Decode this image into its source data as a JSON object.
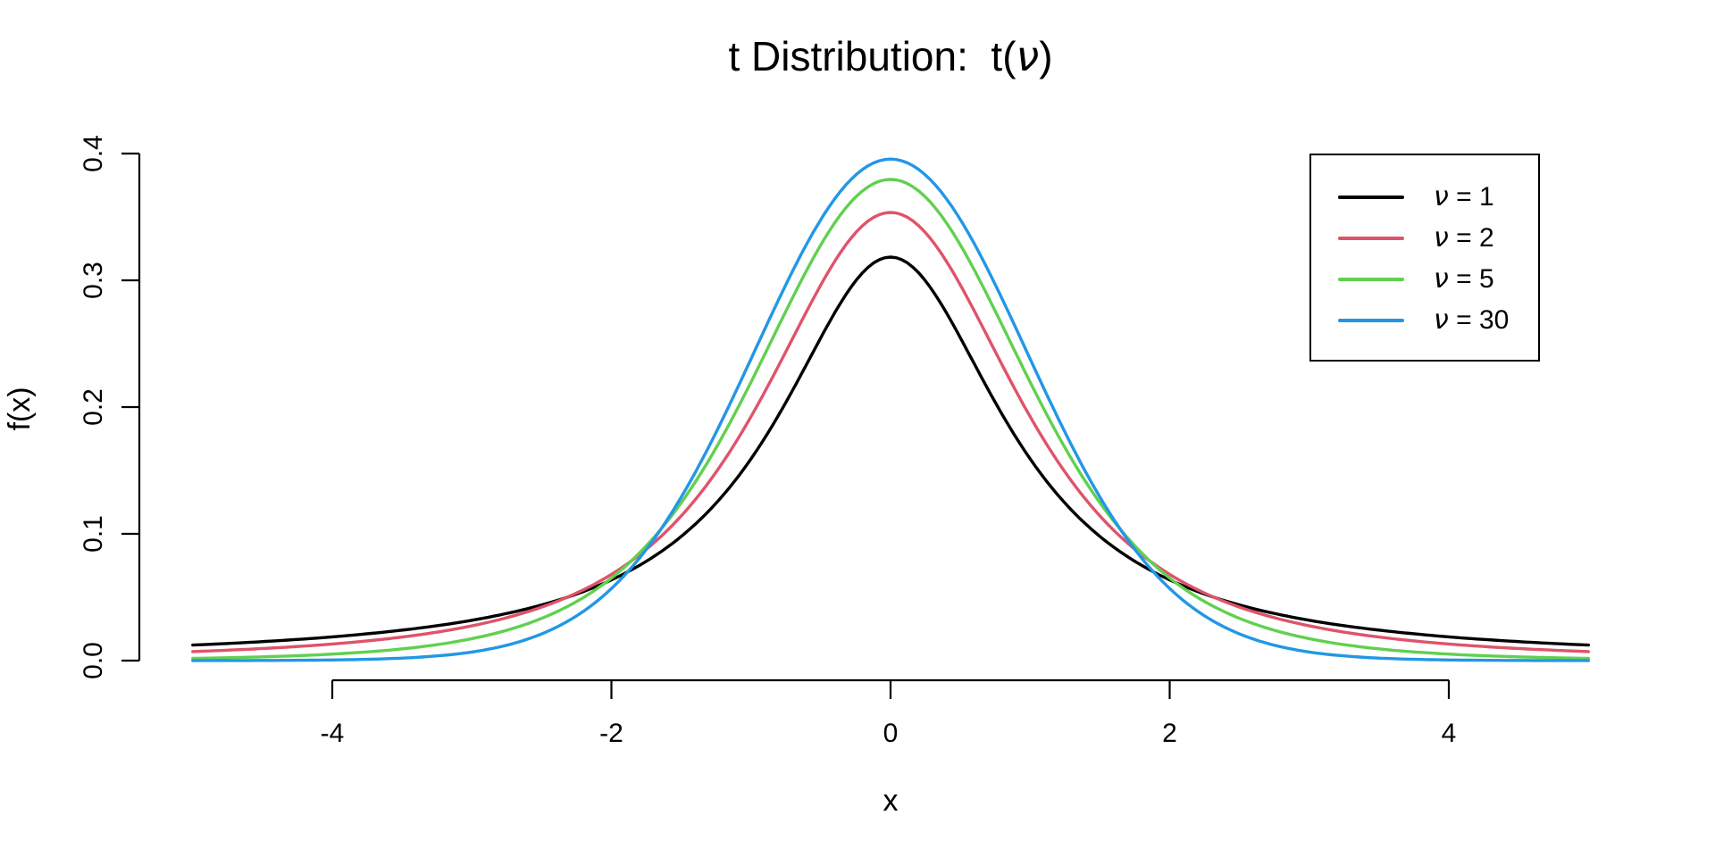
{
  "title": {
    "full": "t Distribution:  t(ν)",
    "prefix": "t Distribution:  t(",
    "symbol": "ν",
    "suffix": ")"
  },
  "legend": {
    "position": "topright",
    "items": [
      {
        "label": "ν = 1",
        "symbol": "ν",
        "rest": " = 1",
        "color": "#000000"
      },
      {
        "label": "ν = 2",
        "symbol": "ν",
        "rest": " = 2",
        "color": "#DF536B"
      },
      {
        "label": "ν = 5",
        "symbol": "ν",
        "rest": " = 5",
        "color": "#61D04F"
      },
      {
        "label": "ν = 30",
        "symbol": "ν",
        "rest": " = 30",
        "color": "#2297E6"
      }
    ]
  },
  "chart_data": {
    "type": "line",
    "title": "t Distribution:  t(ν)",
    "xlabel": "x",
    "ylabel": "f(x)",
    "x_range": [
      -5,
      5
    ],
    "ylim": [
      0,
      0.4
    ],
    "x_ticks": [
      -4,
      -2,
      0,
      2,
      4
    ],
    "y_ticks": [
      "0.0",
      "0.1",
      "0.2",
      "0.3",
      "0.4"
    ],
    "grid": false,
    "legend_position": "topright",
    "x_samples": [
      -5,
      -4.5,
      -4,
      -3.5,
      -3,
      -2.5,
      -2,
      -1.5,
      -1,
      -0.5,
      0,
      0.5,
      1,
      1.5,
      2,
      2.5,
      3,
      3.5,
      4,
      4.5,
      5
    ],
    "series": [
      {
        "name": "ν = 1",
        "id": "nu-1",
        "nu": 1,
        "peak": 0.31831,
        "color": "#000000",
        "values": [
          0.01224,
          0.01499,
          0.01872,
          0.02402,
          0.03183,
          0.0439,
          0.06366,
          0.09794,
          0.15915,
          0.25465,
          0.31831,
          0.25465,
          0.15915,
          0.09794,
          0.06366,
          0.0439,
          0.03183,
          0.02402,
          0.01872,
          0.01499,
          0.01224
        ]
      },
      {
        "name": "ν = 2",
        "id": "nu-2",
        "nu": 2,
        "peak": 0.35355,
        "color": "#DF536B",
        "values": [
          0.00713,
          0.00953,
          0.0131,
          0.01859,
          0.02741,
          0.0422,
          0.06804,
          0.11413,
          0.19245,
          0.2963,
          0.35355,
          0.2963,
          0.19245,
          0.11413,
          0.06804,
          0.0422,
          0.02741,
          0.01859,
          0.0131,
          0.00953,
          0.00713
        ]
      },
      {
        "name": "ν = 5",
        "id": "nu-5",
        "nu": 5,
        "peak": 0.3796,
        "color": "#61D04F",
        "values": [
          0.00176,
          0.00295,
          0.00512,
          0.00924,
          0.01729,
          0.03332,
          0.06509,
          0.12451,
          0.21967,
          0.32791,
          0.3796,
          0.32791,
          0.21967,
          0.12451,
          0.06509,
          0.03332,
          0.01729,
          0.00924,
          0.00512,
          0.00295,
          0.00176
        ]
      },
      {
        "name": "ν = 30",
        "id": "nu-30",
        "nu": 30,
        "peak": 0.39563,
        "color": "#2297E6",
        "values": [
          3e-05,
          0.00013,
          0.00052,
          0.00196,
          0.00678,
          0.02107,
          0.05685,
          0.12897,
          0.238,
          0.34788,
          0.39563,
          0.34788,
          0.238,
          0.12897,
          0.05685,
          0.02107,
          0.00678,
          0.00196,
          0.00052,
          0.00013,
          3e-05
        ]
      }
    ]
  }
}
